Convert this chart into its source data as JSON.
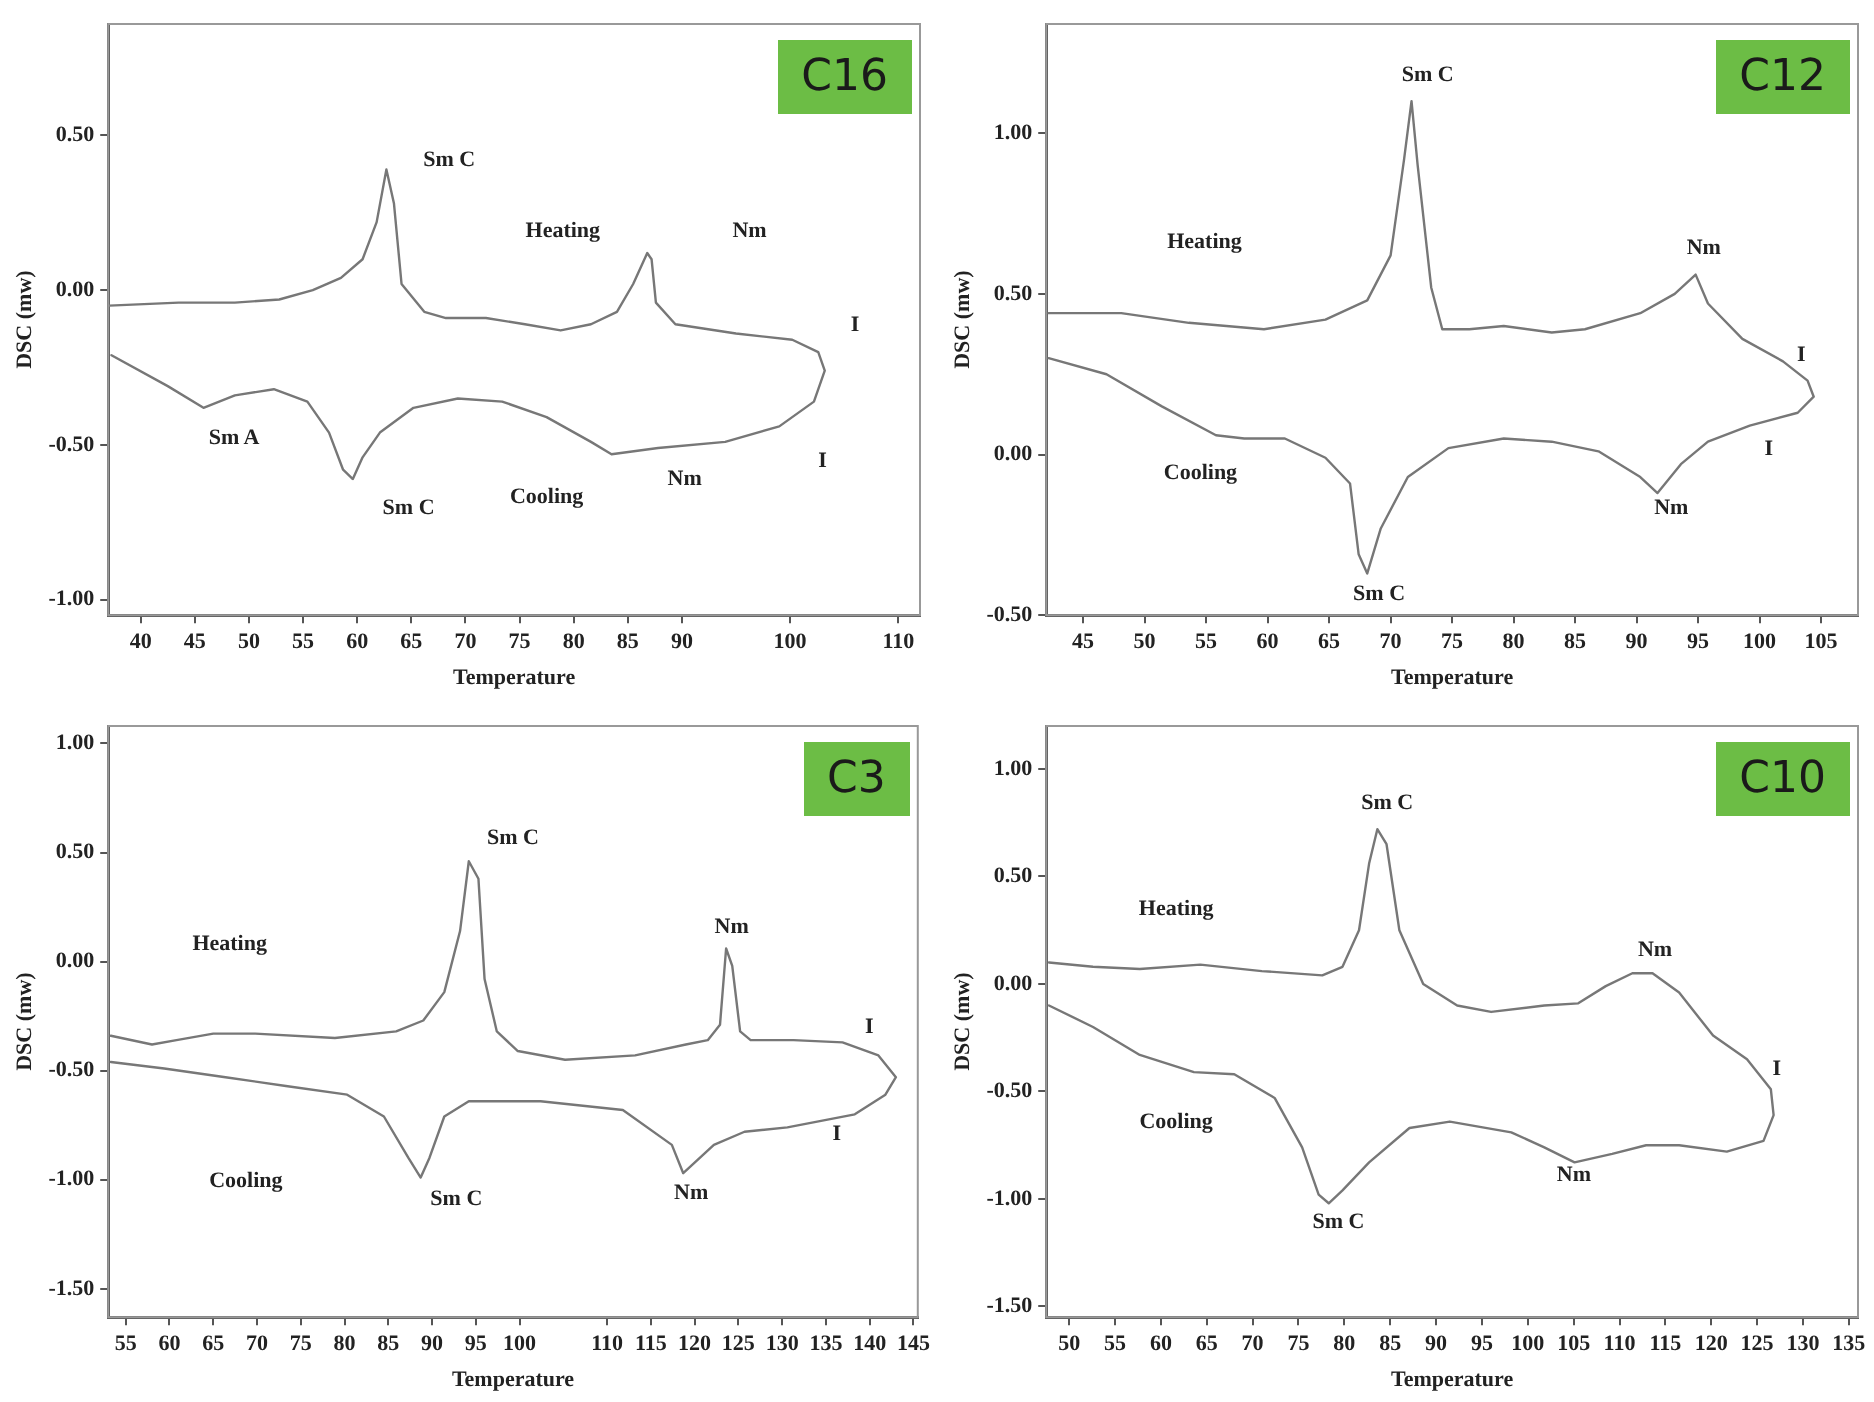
{
  "chart_data": [
    {
      "type": "line",
      "title": "C16",
      "xlabel": "Temperature",
      "ylabel": "DSC (mw)",
      "xlim": [
        37,
        112
      ],
      "ylim": [
        -1.05,
        0.86
      ],
      "xticks": [
        40,
        45,
        50,
        55,
        60,
        65,
        70,
        75,
        80,
        85,
        90,
        100,
        110
      ],
      "yticks": [
        {
          "value": -1,
          "label": "-1.00"
        },
        {
          "value": -0.5,
          "label": "-0.50"
        },
        {
          "value": 0,
          "label": "0.00"
        },
        {
          "value": 0.5,
          "label": "0.50"
        }
      ],
      "series": [
        {
          "color": "#777777",
          "x": [
            37.1,
            43.5,
            48.7,
            52.8,
            55.9,
            58.5,
            60.5,
            61.8,
            62.7,
            63.4,
            64.1,
            66.2,
            68.2,
            71.9,
            75.5,
            78.8,
            81.6,
            84.0,
            85.5,
            86.8,
            87.2,
            87.6,
            89.4,
            95.0,
            100.2,
            102.6,
            103.2,
            102.2,
            99.0,
            94.0,
            87.8,
            83.5,
            81.6,
            77.5,
            73.4,
            69.3,
            65.2,
            62.1,
            60.5,
            59.6,
            58.7,
            57.4,
            55.4,
            52.3,
            48.7,
            45.8,
            42.5,
            37.3
          ],
          "values": [
            -0.05,
            -0.04,
            -0.04,
            -0.03,
            0.0,
            0.04,
            0.1,
            0.22,
            0.39,
            0.28,
            0.02,
            -0.07,
            -0.09,
            -0.09,
            -0.11,
            -0.13,
            -0.11,
            -0.07,
            0.02,
            0.12,
            0.1,
            -0.04,
            -0.11,
            -0.14,
            -0.16,
            -0.2,
            -0.26,
            -0.36,
            -0.44,
            -0.49,
            -0.51,
            -0.53,
            -0.49,
            -0.41,
            -0.36,
            -0.35,
            -0.38,
            -0.46,
            -0.54,
            -0.61,
            -0.58,
            -0.46,
            -0.36,
            -0.32,
            -0.34,
            -0.38,
            -0.31,
            -0.21
          ]
        }
      ],
      "annotations": [
        "Sm C",
        "Heating",
        "Nm",
        "I",
        "Sm A",
        "Sm C",
        "Cooling",
        "Nm",
        "I"
      ]
    },
    {
      "type": "line",
      "title": "C12",
      "xlabel": "Temperature",
      "ylabel": "DSC (mw)",
      "xlim": [
        42,
        108
      ],
      "ylim": [
        -0.5,
        1.34
      ],
      "xticks": [
        45,
        50,
        55,
        60,
        65,
        70,
        75,
        80,
        85,
        90,
        95,
        100,
        105
      ],
      "yticks": [
        {
          "value": -0.5,
          "label": "-0.50"
        },
        {
          "value": 0,
          "label": "0.00"
        },
        {
          "value": 0.5,
          "label": "0.50"
        },
        {
          "value": 1,
          "label": "1.00"
        }
      ],
      "series": [
        {
          "color": "#777777",
          "x": [
            42.2,
            48.1,
            53.6,
            59.7,
            64.7,
            68.1,
            70.0,
            71.1,
            71.7,
            72.2,
            73.3,
            74.2,
            76.4,
            79.2,
            83.1,
            85.8,
            90.3,
            93.1,
            94.8,
            95.8,
            98.6,
            101.9,
            103.9,
            104.4,
            103.1,
            99.2,
            95.8,
            93.6,
            91.7,
            90.3,
            86.9,
            83.1,
            79.2,
            74.7,
            71.4,
            69.2,
            68.1,
            67.4,
            66.7,
            64.7,
            61.4,
            58.1,
            55.8,
            51.4,
            46.9,
            42.2
          ],
          "values": [
            0.44,
            0.44,
            0.41,
            0.39,
            0.42,
            0.48,
            0.62,
            0.92,
            1.1,
            0.9,
            0.52,
            0.39,
            0.39,
            0.4,
            0.38,
            0.39,
            0.44,
            0.5,
            0.56,
            0.47,
            0.36,
            0.29,
            0.23,
            0.18,
            0.13,
            0.09,
            0.04,
            -0.03,
            -0.12,
            -0.07,
            0.01,
            0.04,
            0.05,
            0.02,
            -0.07,
            -0.23,
            -0.37,
            -0.31,
            -0.09,
            -0.01,
            0.05,
            0.05,
            0.06,
            0.15,
            0.25,
            0.3
          ]
        }
      ],
      "annotations": [
        "Sm C",
        "Heating",
        "Nm",
        "I",
        "I",
        "Cooling",
        "Nm",
        "Sm C"
      ]
    },
    {
      "type": "line",
      "title": "C3",
      "xlabel": "Temperature",
      "ylabel": "DSC (mw)",
      "xlim": [
        53,
        145.5
      ],
      "ylim": [
        -1.63,
        1.08
      ],
      "xticks": [
        55,
        60,
        65,
        70,
        75,
        80,
        85,
        90,
        95,
        100,
        110,
        115,
        120,
        125,
        130,
        135,
        140,
        145
      ],
      "yticks": [
        {
          "value": -1.5,
          "label": "-1.50"
        },
        {
          "value": -1,
          "label": "-1.00"
        },
        {
          "value": -0.5,
          "label": "-0.50"
        },
        {
          "value": 0,
          "label": "0.00"
        },
        {
          "value": 0.5,
          "label": "0.50"
        },
        {
          "value": 1,
          "label": "1.00"
        }
      ],
      "series": [
        {
          "color": "#777777",
          "x": [
            53.3,
            58.0,
            60.8,
            65.0,
            69.8,
            78.9,
            85.9,
            89.0,
            91.4,
            93.2,
            94.2,
            95.3,
            96.0,
            97.4,
            99.8,
            105.2,
            113.2,
            119.0,
            121.5,
            122.9,
            123.6,
            124.3,
            125.2,
            126.4,
            131.3,
            136.9,
            141.0,
            143.0,
            141.8,
            138.3,
            130.6,
            125.7,
            122.2,
            118.7,
            117.4,
            111.8,
            102.4,
            94.2,
            91.4,
            89.7,
            88.7,
            87.3,
            84.5,
            80.3,
            73.3,
            66.4,
            59.4,
            53.3
          ],
          "values": [
            -0.34,
            -0.38,
            -0.36,
            -0.33,
            -0.33,
            -0.35,
            -0.32,
            -0.27,
            -0.14,
            0.14,
            0.46,
            0.38,
            -0.08,
            -0.32,
            -0.41,
            -0.45,
            -0.43,
            -0.38,
            -0.36,
            -0.29,
            0.06,
            -0.02,
            -0.32,
            -0.36,
            -0.36,
            -0.37,
            -0.43,
            -0.53,
            -0.61,
            -0.7,
            -0.76,
            -0.78,
            -0.84,
            -0.97,
            -0.84,
            -0.68,
            -0.64,
            -0.64,
            -0.71,
            -0.9,
            -0.99,
            -0.9,
            -0.71,
            -0.61,
            -0.57,
            -0.53,
            -0.49,
            -0.46
          ]
        }
      ],
      "annotations": [
        "Sm C",
        "Heating",
        "Nm",
        "I",
        "I",
        "Cooling",
        "Sm C",
        "Nm"
      ]
    },
    {
      "type": "line",
      "title": "C10",
      "xlabel": "Temperature",
      "ylabel": "DSC (mw)",
      "xlim": [
        47.5,
        136
      ],
      "ylim": [
        -1.55,
        1.2
      ],
      "xticks": [
        50,
        55,
        60,
        65,
        70,
        75,
        80,
        85,
        90,
        95,
        100,
        105,
        110,
        115,
        120,
        125,
        130,
        135
      ],
      "yticks": [
        {
          "value": -1.5,
          "label": "-1.50"
        },
        {
          "value": -1,
          "label": "-1.00"
        },
        {
          "value": -0.5,
          "label": "-0.50"
        },
        {
          "value": 0,
          "label": "0.00"
        },
        {
          "value": 0.5,
          "label": "0.50"
        },
        {
          "value": 1,
          "label": "1.00"
        }
      ],
      "series": [
        {
          "color": "#777777",
          "x": [
            47.8,
            52.6,
            57.7,
            64.3,
            71.0,
            77.6,
            79.8,
            81.6,
            82.7,
            83.6,
            84.6,
            86.0,
            88.6,
            92.3,
            96.0,
            101.8,
            105.5,
            108.5,
            111.4,
            113.6,
            116.5,
            120.2,
            123.9,
            126.5,
            126.8,
            125.7,
            121.7,
            116.5,
            112.9,
            109.2,
            105.1,
            101.8,
            98.2,
            91.5,
            87.1,
            82.7,
            79.8,
            78.3,
            77.2,
            75.4,
            72.4,
            68.0,
            63.6,
            57.7,
            52.6,
            47.8
          ],
          "values": [
            0.1,
            0.08,
            0.07,
            0.09,
            0.06,
            0.04,
            0.08,
            0.25,
            0.56,
            0.72,
            0.65,
            0.25,
            0.0,
            -0.1,
            -0.13,
            -0.1,
            -0.09,
            -0.01,
            0.05,
            0.05,
            -0.04,
            -0.24,
            -0.35,
            -0.49,
            -0.61,
            -0.73,
            -0.78,
            -0.75,
            -0.75,
            -0.79,
            -0.83,
            -0.76,
            -0.69,
            -0.64,
            -0.67,
            -0.83,
            -0.96,
            -1.02,
            -0.98,
            -0.76,
            -0.53,
            -0.42,
            -0.41,
            -0.33,
            -0.2,
            -0.1
          ]
        }
      ],
      "annotations": [
        "Sm C",
        "Heating",
        "Nm",
        "I",
        "Cooling",
        "Nm",
        "Sm C"
      ]
    }
  ]
}
